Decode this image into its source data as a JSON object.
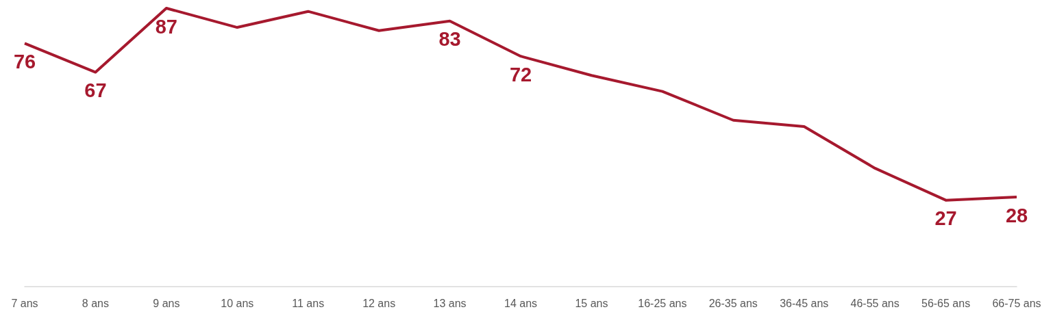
{
  "chart_data": {
    "type": "line",
    "categories": [
      "7 ans",
      "8 ans",
      "9 ans",
      "10 ans",
      "11 ans",
      "12 ans",
      "13 ans",
      "14 ans",
      "15 ans",
      "16-25 ans",
      "26-35 ans",
      "36-45 ans",
      "46-55 ans",
      "56-65 ans",
      "66-75 ans"
    ],
    "series": [
      {
        "color": "#a6192e",
        "values": [
          76,
          67,
          87,
          81,
          86,
          80,
          83,
          72,
          66,
          61,
          52,
          50,
          37,
          27,
          28
        ],
        "value_labels": [
          "76",
          "67",
          "87",
          null,
          null,
          null,
          "83",
          "72",
          null,
          null,
          null,
          null,
          null,
          "27",
          "28"
        ]
      }
    ],
    "marker": "none",
    "grid": false,
    "tick_labels": "x"
  }
}
